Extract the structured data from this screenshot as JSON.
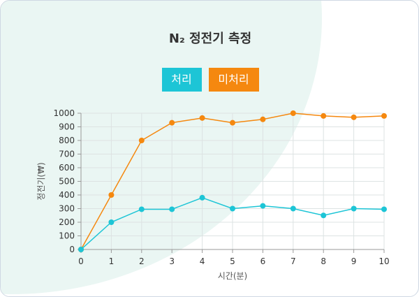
{
  "title": "N₂ 정전기 측정",
  "legend": {
    "series_a_label": "처리",
    "series_b_label": "미처리"
  },
  "colors": {
    "series_a": "#1dc5d6",
    "series_b": "#f5880f"
  },
  "chart_data": {
    "type": "line",
    "title": "N₂ 정전기 측정",
    "xlabel": "시간(분)",
    "ylabel": "정전기(₩)",
    "x": [
      0,
      1,
      2,
      3,
      4,
      5,
      6,
      7,
      8,
      9,
      10
    ],
    "xlim": [
      0,
      10
    ],
    "ylim": [
      0,
      1000
    ],
    "yticks": [
      0,
      100,
      200,
      300,
      400,
      500,
      600,
      700,
      800,
      900,
      1000
    ],
    "grid": true,
    "legend_position": "top",
    "series": [
      {
        "name": "처리",
        "values": [
          0,
          200,
          295,
          295,
          380,
          300,
          320,
          300,
          250,
          300,
          295
        ]
      },
      {
        "name": "미처리",
        "values": [
          0,
          400,
          800,
          930,
          965,
          930,
          955,
          1000,
          980,
          970,
          980
        ]
      }
    ]
  }
}
